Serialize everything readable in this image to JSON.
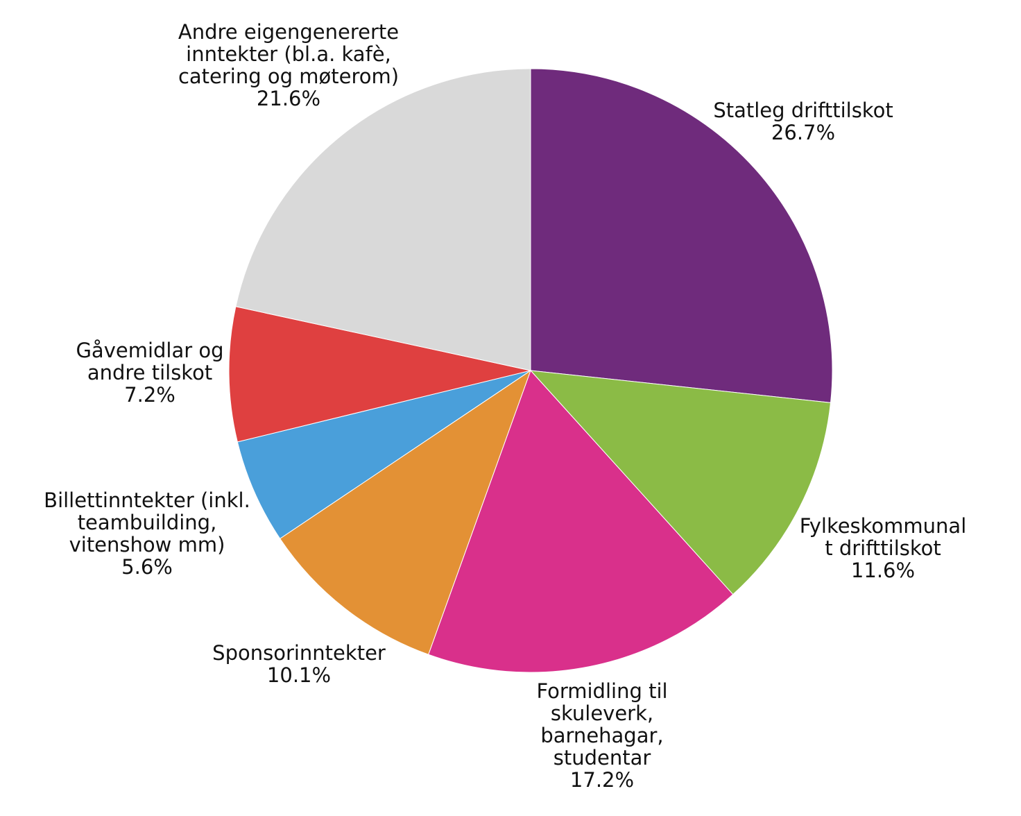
{
  "chart_data": {
    "type": "pie",
    "title": "",
    "slices": [
      {
        "label_lines": [
          "Statleg drifttilskot"
        ],
        "value": 26.7,
        "value_label": "26.7%",
        "color": "#6f2b7c"
      },
      {
        "label_lines": [
          "Fylkeskommunal",
          "t drifttilskot"
        ],
        "value": 11.6,
        "value_label": "11.6%",
        "color": "#8bbb46"
      },
      {
        "label_lines": [
          "Formidling til",
          "skuleverk,",
          "barnehagar,",
          "studentar"
        ],
        "value": 17.2,
        "value_label": "17.2%",
        "color": "#d9308b"
      },
      {
        "label_lines": [
          "Sponsorinntekter"
        ],
        "value": 10.1,
        "value_label": "10.1%",
        "color": "#e39135"
      },
      {
        "label_lines": [
          "Billettinntekter (inkl.",
          "teambuilding,",
          "vitenshow mm)"
        ],
        "value": 5.6,
        "value_label": "5.6%",
        "color": "#4a9fda"
      },
      {
        "label_lines": [
          "Gåvemidlar og",
          "andre tilskot"
        ],
        "value": 7.2,
        "value_label": "7.2%",
        "color": "#df4040"
      },
      {
        "label_lines": [
          "Andre eigengenererte",
          "inntekter (bl.a. kafè,",
          "catering og møterom)"
        ],
        "value": 21.6,
        "value_label": "21.6%",
        "color": "#d9d9d9"
      }
    ],
    "start_angle": "12 o'clock",
    "direction": "clockwise",
    "legend": "none"
  }
}
